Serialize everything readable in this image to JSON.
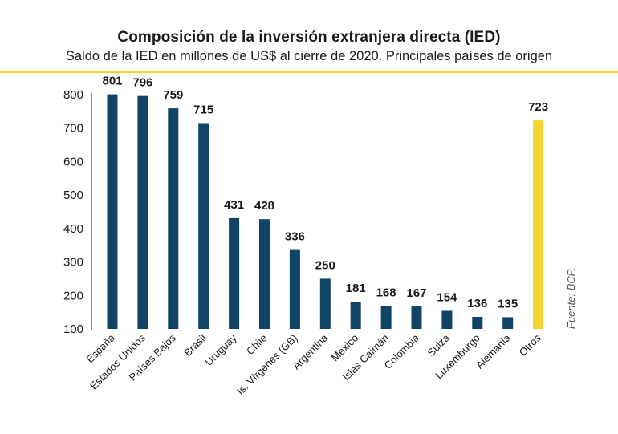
{
  "header": {
    "title": "Composición de la inversión extranjera directa (IED)",
    "subtitle": "Saldo de la IED en millones de US$ al cierre de 2020. Principales países de origen"
  },
  "source": "Fuente: BCP.",
  "colors": {
    "bar": "#0f4466",
    "highlight": "#f6d22e",
    "rule": "#f6d22e",
    "axis": "#222222"
  },
  "chart_data": {
    "type": "bar",
    "title": "Composición de la inversión extranjera directa (IED)",
    "subtitle": "Saldo de la IED en millones de US$ al cierre de 2020. Principales países de origen",
    "xlabel": "",
    "ylabel": "",
    "ylim": [
      100,
      800
    ],
    "yticks": [
      100,
      200,
      300,
      400,
      500,
      600,
      700,
      800
    ],
    "grid": false,
    "categories": [
      "España",
      "Estados Unidos",
      "Países Bajos",
      "Brasil",
      "Uruguay",
      "Chile",
      "Is. Vírgenes (GB)",
      "Argentina",
      "México",
      "Islas Caimán",
      "Colombia",
      "Suiza",
      "Luxemburgo",
      "Alemania",
      "Otros"
    ],
    "values": [
      801,
      796,
      759,
      715,
      431,
      428,
      336,
      250,
      181,
      168,
      167,
      154,
      136,
      135,
      723
    ],
    "value_labels": [
      "801",
      "796",
      "759",
      "715",
      "431",
      "428",
      "336",
      "250",
      "181",
      "168",
      "167",
      "154",
      "136",
      "135",
      "723"
    ],
    "highlighted": [
      "Otros"
    ]
  }
}
